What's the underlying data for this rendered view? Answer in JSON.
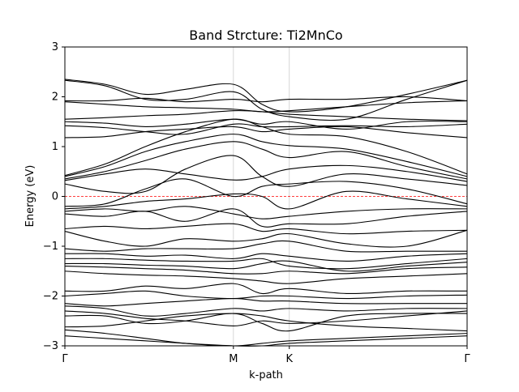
{
  "chart_data": {
    "type": "line",
    "title": "Band Strcture: Ti2MnCo",
    "xlabel": "k-path",
    "ylabel": "Energy (eV)",
    "ylim": [
      -3,
      3
    ],
    "xlim": [
      0,
      1
    ],
    "yticks": [
      -3,
      -2,
      -1,
      0,
      1,
      2,
      3
    ],
    "ytick_labels": [
      "−3",
      "−2",
      "−1",
      "0",
      "1",
      "2",
      "3"
    ],
    "kpoints": [
      {
        "label": "Γ",
        "x": 0.0
      },
      {
        "label": "M",
        "x": 0.419
      },
      {
        "label": "K",
        "x": 0.558
      },
      {
        "label": "Γ",
        "x": 1.0
      }
    ],
    "grid": "vertical lines at high-symmetry points",
    "fermi_level": {
      "y": 0,
      "color": "#ff0000",
      "style": "dashed"
    },
    "band_color": "#000000",
    "x": [
      0,
      0.1,
      0.2,
      0.3,
      0.419,
      0.49,
      0.558,
      0.7,
      0.85,
      1.0
    ],
    "series": [
      {
        "values": [
          2.35,
          2.25,
          2.05,
          2.15,
          2.25,
          1.85,
          1.7,
          1.8,
          2.05,
          2.33
        ]
      },
      {
        "values": [
          2.33,
          2.22,
          1.95,
          1.95,
          2.1,
          1.75,
          1.6,
          1.55,
          1.95,
          2.33
        ]
      },
      {
        "values": [
          1.92,
          1.92,
          1.97,
          1.9,
          1.95,
          1.9,
          1.95,
          1.95,
          2.0,
          1.92
        ]
      },
      {
        "values": [
          1.9,
          1.85,
          1.8,
          1.78,
          1.75,
          1.7,
          1.72,
          1.8,
          1.88,
          1.92
        ]
      },
      {
        "values": [
          1.55,
          1.58,
          1.62,
          1.65,
          1.72,
          1.7,
          1.65,
          1.6,
          1.55,
          1.52
        ]
      },
      {
        "values": [
          1.5,
          1.47,
          1.4,
          1.45,
          1.55,
          1.45,
          1.5,
          1.35,
          1.5,
          1.5
        ]
      },
      {
        "values": [
          1.42,
          1.38,
          1.3,
          1.25,
          1.45,
          1.4,
          1.4,
          1.42,
          1.4,
          1.45
        ]
      },
      {
        "values": [
          1.18,
          1.2,
          1.3,
          1.35,
          1.4,
          1.3,
          1.35,
          1.4,
          1.28,
          1.18
        ]
      },
      {
        "values": [
          0.42,
          0.65,
          1.0,
          1.3,
          1.55,
          1.4,
          1.25,
          1.2,
          0.9,
          0.45
        ]
      },
      {
        "values": [
          0.4,
          0.6,
          0.9,
          1.1,
          1.25,
          1.1,
          1.02,
          0.95,
          0.7,
          0.4
        ]
      },
      {
        "values": [
          0.35,
          0.5,
          0.72,
          0.95,
          1.1,
          0.95,
          0.78,
          0.9,
          0.6,
          0.35
        ]
      },
      {
        "values": [
          0.32,
          0.45,
          0.55,
          0.45,
          0.33,
          0.4,
          0.55,
          0.62,
          0.5,
          0.3
        ]
      },
      {
        "values": [
          0.25,
          0.1,
          0.1,
          0.55,
          0.82,
          0.4,
          0.2,
          0.45,
          0.35,
          0.22
        ]
      },
      {
        "values": [
          -0.2,
          -0.15,
          0.15,
          0.35,
          0.0,
          0.2,
          0.25,
          0.3,
          0.15,
          -0.15
        ]
      },
      {
        "values": [
          -0.25,
          -0.2,
          -0.1,
          -0.05,
          0.05,
          0.0,
          -0.25,
          0.1,
          -0.05,
          -0.2
        ]
      },
      {
        "values": [
          -0.3,
          -0.25,
          -0.3,
          -0.2,
          -0.35,
          -0.45,
          -0.4,
          -0.3,
          -0.25,
          -0.25
        ]
      },
      {
        "values": [
          -0.35,
          -0.4,
          -0.3,
          -0.5,
          -0.25,
          -0.6,
          -0.55,
          -0.55,
          -0.4,
          -0.3
        ]
      },
      {
        "values": [
          -0.65,
          -0.6,
          -0.65,
          -0.6,
          -0.55,
          -0.7,
          -0.65,
          -0.75,
          -0.7,
          -0.68
        ]
      },
      {
        "values": [
          -0.7,
          -0.9,
          -1.0,
          -0.85,
          -0.9,
          -0.85,
          -0.75,
          -0.95,
          -1.0,
          -0.68
        ]
      },
      {
        "values": [
          -1.05,
          -1.1,
          -1.05,
          -1.05,
          -1.05,
          -0.95,
          -0.9,
          -1.1,
          -1.1,
          -1.1
        ]
      },
      {
        "values": [
          -1.15,
          -1.15,
          -1.2,
          -1.18,
          -1.25,
          -1.15,
          -1.2,
          -1.3,
          -1.2,
          -1.15
        ]
      },
      {
        "values": [
          -1.25,
          -1.25,
          -1.28,
          -1.3,
          -1.3,
          -1.25,
          -1.4,
          -1.45,
          -1.35,
          -1.25
        ]
      },
      {
        "values": [
          -1.35,
          -1.35,
          -1.38,
          -1.4,
          -1.45,
          -1.35,
          -1.3,
          -1.5,
          -1.4,
          -1.32
        ]
      },
      {
        "values": [
          -1.4,
          -1.42,
          -1.45,
          -1.48,
          -1.55,
          -1.55,
          -1.5,
          -1.55,
          -1.45,
          -1.42
        ]
      },
      {
        "values": [
          -1.5,
          -1.55,
          -1.58,
          -1.6,
          -1.65,
          -1.7,
          -1.75,
          -1.65,
          -1.6,
          -1.55
        ]
      },
      {
        "values": [
          -1.9,
          -1.9,
          -1.8,
          -1.85,
          -1.75,
          -1.95,
          -1.85,
          -1.95,
          -1.9,
          -1.9
        ]
      },
      {
        "values": [
          -2.0,
          -1.95,
          -1.9,
          -2.0,
          -2.05,
          -2.0,
          -2.0,
          -2.05,
          -2.0,
          -1.98
        ]
      },
      {
        "values": [
          -2.15,
          -2.2,
          -2.15,
          -2.1,
          -2.05,
          -2.1,
          -2.1,
          -2.15,
          -2.15,
          -2.15
        ]
      },
      {
        "values": [
          -2.2,
          -2.25,
          -2.4,
          -2.35,
          -2.25,
          -2.3,
          -2.25,
          -2.3,
          -2.25,
          -2.25
        ]
      },
      {
        "values": [
          -2.3,
          -2.35,
          -2.45,
          -2.5,
          -2.6,
          -2.5,
          -2.55,
          -2.5,
          -2.4,
          -2.3
        ]
      },
      {
        "values": [
          -2.4,
          -2.4,
          -2.55,
          -2.5,
          -2.35,
          -2.55,
          -2.7,
          -2.4,
          -2.35,
          -2.35
        ]
      },
      {
        "values": [
          -2.62,
          -2.6,
          -2.5,
          -2.4,
          -2.35,
          -2.4,
          -2.5,
          -2.6,
          -2.65,
          -2.7
        ]
      },
      {
        "values": [
          -2.68,
          -2.75,
          -2.85,
          -2.95,
          -3.0,
          -2.95,
          -2.9,
          -2.85,
          -2.8,
          -2.75
        ]
      },
      {
        "values": [
          -2.8,
          -2.85,
          -2.9,
          -2.95,
          -3.0,
          -3.0,
          -2.95,
          -2.9,
          -2.85,
          -2.8
        ]
      }
    ]
  }
}
